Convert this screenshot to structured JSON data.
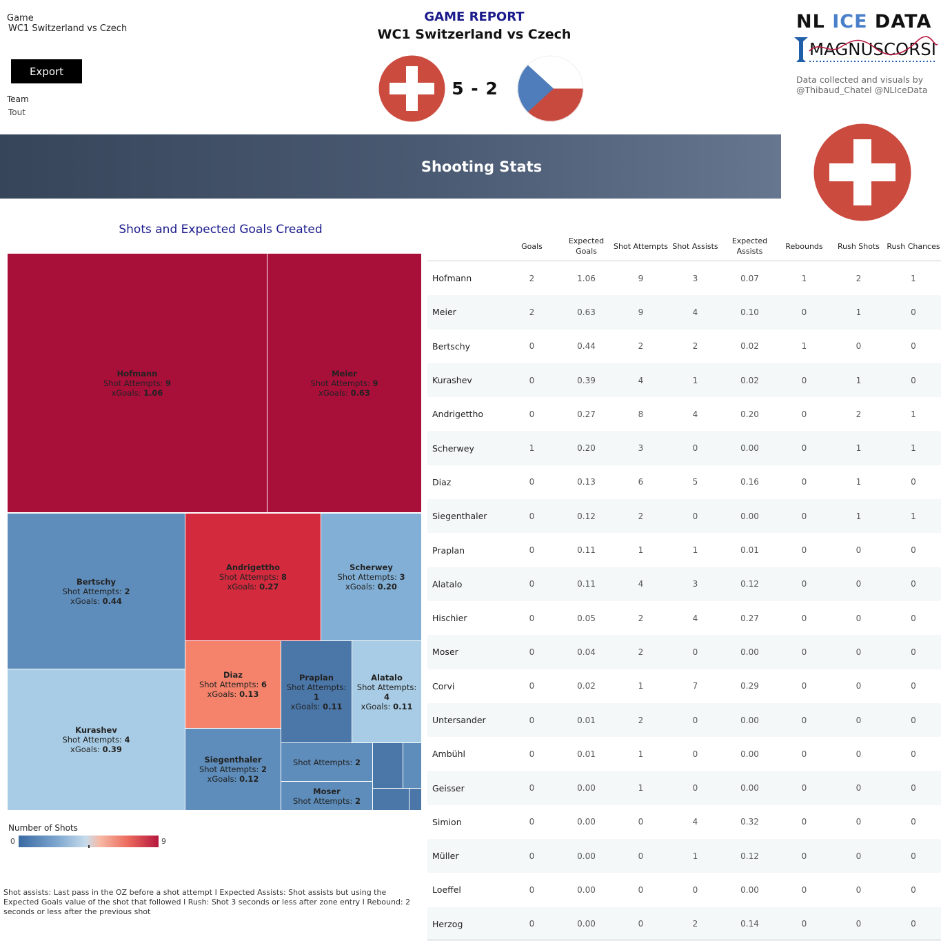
{
  "filters": {
    "game_label": "Game",
    "game_value": "WC1 Switzerland vs Czech",
    "export_label": "Export",
    "team_label": "Team",
    "team_value": "Tout"
  },
  "header": {
    "title": "GAME REPORT",
    "subtitle": "WC1 Switzerland vs Czech",
    "score": "5 - 2",
    "home_flag": "switzerland-flag-icon",
    "away_flag": "czech-flag-icon"
  },
  "branding": {
    "logo_line1_part1": "NL ",
    "logo_line1_accent": "ICE",
    "logo_line1_part2": " DATA",
    "logo_line2": "MAGNUSCORSI",
    "credits_line1": "Data collected and visuals by",
    "credits_line2": "@Thibaud_Chatel @NLIceData"
  },
  "banner": {
    "title": "Shooting Stats",
    "team_flag": "switzerland-flag-icon"
  },
  "colors": {
    "swiss_red": "#cb4b3f",
    "czech_blue": "#4f7cba",
    "czech_red": "#c84a3e",
    "title_blue": "#1a1a8c"
  },
  "treemap": {
    "title": "Shots and Expected Goals Created",
    "attempts_label": "Shot Attempts:",
    "xgoals_label": "xGoals:",
    "legend_title": "Number of Shots",
    "legend_min": "0",
    "legend_max": "9",
    "tiles": [
      {
        "name": "Hofmann",
        "attempts": "9",
        "xg": "1.06"
      },
      {
        "name": "Meier",
        "attempts": "9",
        "xg": "0.63"
      },
      {
        "name": "Bertschy",
        "attempts": "2",
        "xg": "0.44"
      },
      {
        "name": "Andrigettho",
        "attempts": "8",
        "xg": "0.27"
      },
      {
        "name": "Scherwey",
        "attempts": "3",
        "xg": "0.20"
      },
      {
        "name": "Diaz",
        "attempts": "6",
        "xg": "0.13"
      },
      {
        "name": "Praplan",
        "attempts": "1",
        "xg": "0.11"
      },
      {
        "name": "Alatalo",
        "attempts": "4",
        "xg": "0.11"
      },
      {
        "name": "Kurashev",
        "attempts": "4",
        "xg": "0.39"
      },
      {
        "name": "Siegenthaler",
        "attempts": "2",
        "xg": "0.12"
      },
      {
        "name": "",
        "attempts": "2",
        "xg": ""
      },
      {
        "name": "Moser",
        "attempts": "2",
        "xg": ""
      }
    ]
  },
  "footnote": "Shot assists: Last pass in the OZ before a shot attempt I Expected Assists: Shot assists but using the Expected Goals value of the shot that followed I Rush: Shot 3 seconds or less after zone entry I Rebound: 2 seconds or less after the previous shot",
  "table": {
    "headers": [
      "",
      "Goals",
      "Expected Goals",
      "Shot Attempts",
      "Shot Assists",
      "Expected Assists",
      "Rebounds",
      "Rush Shots",
      "Rush Chances"
    ],
    "rows": [
      [
        "Hofmann",
        "2",
        "1.06",
        "9",
        "3",
        "0.07",
        "1",
        "2",
        "1"
      ],
      [
        "Meier",
        "2",
        "0.63",
        "9",
        "4",
        "0.10",
        "0",
        "1",
        "0"
      ],
      [
        "Bertschy",
        "0",
        "0.44",
        "2",
        "2",
        "0.02",
        "1",
        "0",
        "0"
      ],
      [
        "Kurashev",
        "0",
        "0.39",
        "4",
        "1",
        "0.02",
        "0",
        "1",
        "0"
      ],
      [
        "Andrigettho",
        "0",
        "0.27",
        "8",
        "4",
        "0.20",
        "0",
        "2",
        "1"
      ],
      [
        "Scherwey",
        "1",
        "0.20",
        "3",
        "0",
        "0.00",
        "0",
        "1",
        "1"
      ],
      [
        "Diaz",
        "0",
        "0.13",
        "6",
        "5",
        "0.16",
        "0",
        "1",
        "0"
      ],
      [
        "Siegenthaler",
        "0",
        "0.12",
        "2",
        "0",
        "0.00",
        "0",
        "1",
        "1"
      ],
      [
        "Praplan",
        "0",
        "0.11",
        "1",
        "1",
        "0.01",
        "0",
        "0",
        "0"
      ],
      [
        "Alatalo",
        "0",
        "0.11",
        "4",
        "3",
        "0.12",
        "0",
        "0",
        "0"
      ],
      [
        "Hischier",
        "0",
        "0.05",
        "2",
        "4",
        "0.27",
        "0",
        "0",
        "0"
      ],
      [
        "Moser",
        "0",
        "0.04",
        "2",
        "0",
        "0.00",
        "0",
        "0",
        "0"
      ],
      [
        "Corvi",
        "0",
        "0.02",
        "1",
        "7",
        "0.29",
        "0",
        "0",
        "0"
      ],
      [
        "Untersander",
        "0",
        "0.01",
        "2",
        "0",
        "0.00",
        "0",
        "0",
        "0"
      ],
      [
        "Ambühl",
        "0",
        "0.01",
        "1",
        "0",
        "0.00",
        "0",
        "0",
        "0"
      ],
      [
        "Geisser",
        "0",
        "0.00",
        "1",
        "0",
        "0.00",
        "0",
        "0",
        "0"
      ],
      [
        "Simion",
        "0",
        "0.00",
        "0",
        "4",
        "0.32",
        "0",
        "0",
        "0"
      ],
      [
        "Müller",
        "0",
        "0.00",
        "0",
        "1",
        "0.12",
        "0",
        "0",
        "0"
      ],
      [
        "Loeffel",
        "0",
        "0.00",
        "0",
        "0",
        "0.00",
        "0",
        "0",
        "0"
      ],
      [
        "Herzog",
        "0",
        "0.00",
        "0",
        "2",
        "0.14",
        "0",
        "0",
        "0"
      ]
    ]
  }
}
